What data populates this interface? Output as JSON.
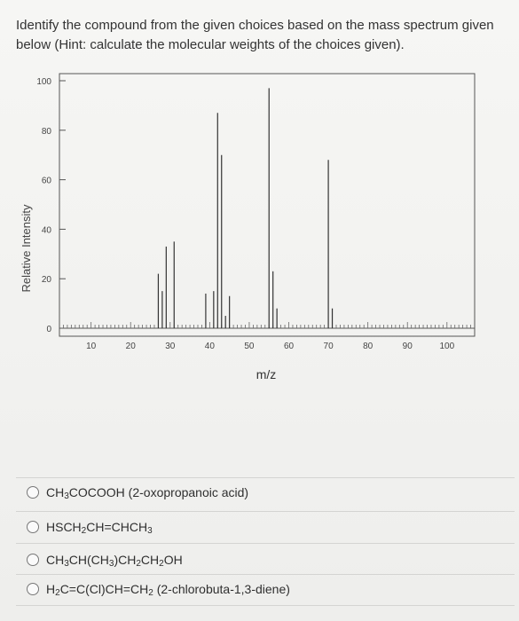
{
  "question": "Identify the compound from the given choices based on the mass spectrum given below (Hint: calculate the molecular weights of the choices given).",
  "chart_data": {
    "type": "bar",
    "xlabel": "m/z",
    "ylabel": "Relative Intensity",
    "xlim": [
      2,
      107
    ],
    "ylim": [
      0,
      100
    ],
    "xticks": [
      10,
      20,
      30,
      40,
      50,
      60,
      70,
      80,
      90,
      100
    ],
    "yticks": [
      0,
      20,
      40,
      60,
      80,
      100
    ],
    "peaks": [
      {
        "x": 27,
        "y": 22
      },
      {
        "x": 28,
        "y": 15
      },
      {
        "x": 29,
        "y": 33
      },
      {
        "x": 31,
        "y": 35
      },
      {
        "x": 39,
        "y": 14
      },
      {
        "x": 41,
        "y": 15
      },
      {
        "x": 42,
        "y": 87
      },
      {
        "x": 43,
        "y": 70
      },
      {
        "x": 44,
        "y": 5
      },
      {
        "x": 45,
        "y": 13
      },
      {
        "x": 55,
        "y": 97
      },
      {
        "x": 56,
        "y": 23
      },
      {
        "x": 57,
        "y": 8
      },
      {
        "x": 70,
        "y": 68
      },
      {
        "x": 71,
        "y": 8
      }
    ],
    "grid": false,
    "legend": "none"
  },
  "options": [
    {
      "pre": "CH",
      "s1": "3",
      "mid": "COCOOH (2-oxopropanoic acid)",
      "s2": "",
      "post": "",
      "s3": "",
      "tail": ""
    },
    {
      "pre": "HSCH",
      "s1": "2",
      "mid": "CH=CHCH",
      "s2": "3",
      "post": "",
      "s3": "",
      "tail": ""
    },
    {
      "pre": "CH",
      "s1": "3",
      "mid": "CH(CH",
      "s2": "3",
      "post": ")CH",
      "s3": "2",
      "tail": "CH2OH"
    },
    {
      "pre": "H",
      "s1": "2",
      "mid": "C=C(Cl)CH=CH",
      "s2": "2",
      "post": " (2-chlorobuta-1,3-diene)",
      "s3": "",
      "tail": ""
    }
  ]
}
